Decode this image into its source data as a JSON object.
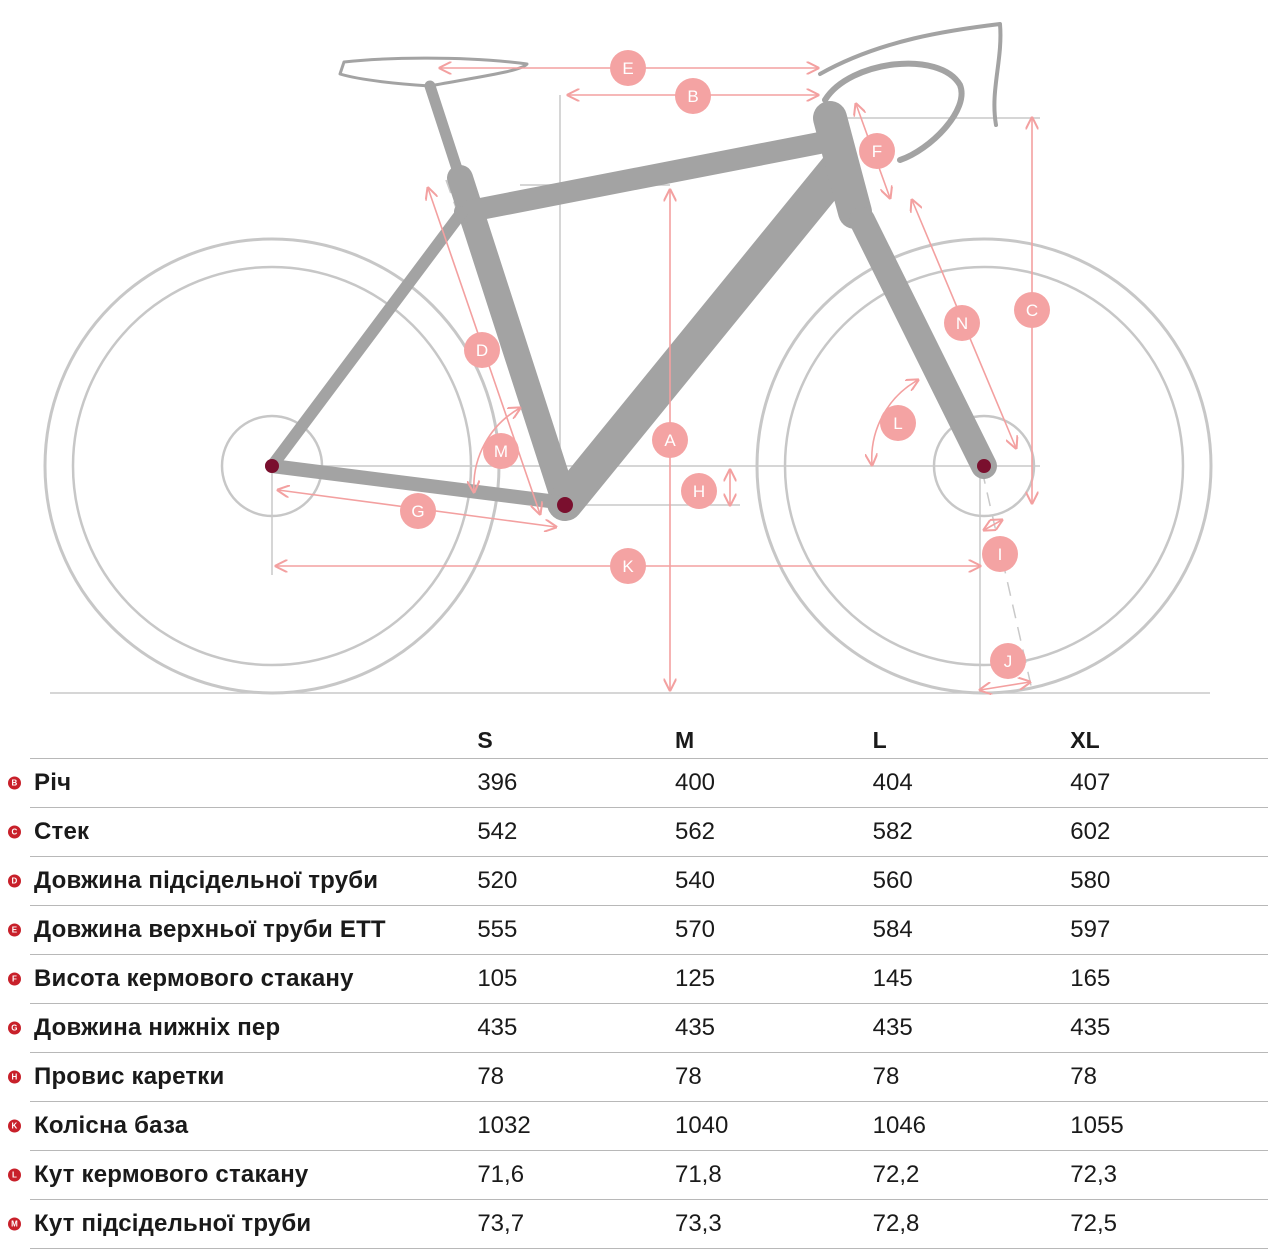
{
  "diagram": {
    "markers": [
      "A",
      "B",
      "C",
      "D",
      "E",
      "F",
      "G",
      "H",
      "I",
      "J",
      "K",
      "L",
      "M",
      "N"
    ],
    "colors": {
      "frame": "#9a9a9a",
      "wheel": "#c7c7c7",
      "dim": "#f3a0a0",
      "badge": "#f4a3a3",
      "hub": "#7a0f2e"
    }
  },
  "table": {
    "sizes": [
      "S",
      "M",
      "L",
      "XL"
    ],
    "rows": [
      {
        "code": "B",
        "label": "Річ",
        "values": [
          "396",
          "400",
          "404",
          "407"
        ]
      },
      {
        "code": "C",
        "label": "Стек",
        "values": [
          "542",
          "562",
          "582",
          "602"
        ]
      },
      {
        "code": "D",
        "label": "Довжина підсідельної труби",
        "values": [
          "520",
          "540",
          "560",
          "580"
        ]
      },
      {
        "code": "E",
        "label": "Довжина верхньої труби ETT",
        "values": [
          "555",
          "570",
          "584",
          "597"
        ]
      },
      {
        "code": "F",
        "label": "Висота кермового стакану",
        "values": [
          "105",
          "125",
          "145",
          "165"
        ]
      },
      {
        "code": "G",
        "label": "Довжина нижніх пер",
        "values": [
          "435",
          "435",
          "435",
          "435"
        ]
      },
      {
        "code": "H",
        "label": "Провис каретки",
        "values": [
          "78",
          "78",
          "78",
          "78"
        ]
      },
      {
        "code": "K",
        "label": "Колісна база",
        "values": [
          "1032",
          "1040",
          "1046",
          "1055"
        ]
      },
      {
        "code": "L",
        "label": "Кут кермового стакану",
        "values": [
          "71,6",
          "71,8",
          "72,2",
          "72,3"
        ]
      },
      {
        "code": "M",
        "label": "Кут підсідельної труби",
        "values": [
          "73,7",
          "73,3",
          "72,8",
          "72,5"
        ]
      }
    ]
  }
}
